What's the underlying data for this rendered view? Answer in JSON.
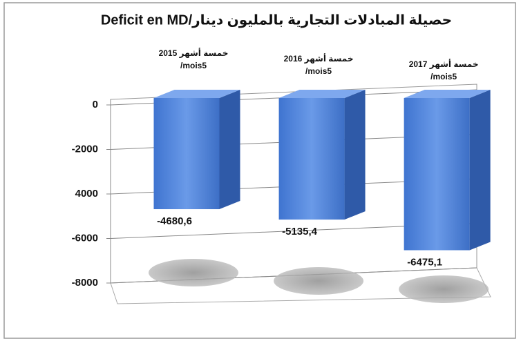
{
  "chart_data": {
    "type": "bar3d",
    "title": "حصيلة المبادلات التجارية بالمليون دينار/Deficit en MD",
    "categories": [
      [
        "خمسة أشهر 2015",
        "mois5/"
      ],
      [
        "خمسة أشهر 2016",
        "mois5/"
      ],
      [
        "خمسة أشهر 2017",
        "mois5/"
      ]
    ],
    "values": [
      -4680.6,
      -5135.4,
      -6475.1
    ],
    "value_labels": [
      "-4680,6",
      "-5135,4",
      "-6475,1"
    ],
    "color": "#4a7fd6",
    "ylim": [
      -8000,
      0
    ],
    "yticks": [
      0,
      -2000,
      {
        "value": -4000,
        "label": "4000"
      },
      -6000,
      -8000
    ],
    "grid": true
  }
}
